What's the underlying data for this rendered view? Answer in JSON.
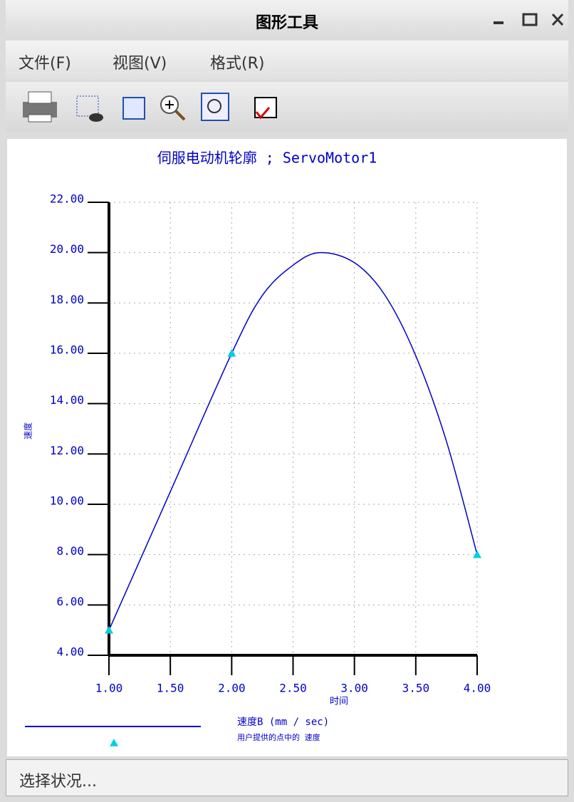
{
  "window": {
    "title": "图形工具",
    "menus": [
      "文件(F)",
      "视图(V)",
      "格式(R)"
    ],
    "status": "选择状况..."
  },
  "chart_data": {
    "type": "line",
    "title": "伺服电动机轮廓 ; ServoMotor1",
    "x_label": "时间",
    "y_label": "速度",
    "xlim": [
      1,
      4
    ],
    "ylim": [
      4,
      22
    ],
    "xticks": [
      {
        "value": 1,
        "label": "1.00"
      },
      {
        "value": 1.5,
        "label": "1.50"
      },
      {
        "value": 2,
        "label": "2.00"
      },
      {
        "value": 2.5,
        "label": "2.50"
      },
      {
        "value": 3,
        "label": "3.00"
      },
      {
        "value": 3.5,
        "label": "3.50"
      },
      {
        "value": 4,
        "label": "4.00"
      }
    ],
    "yticks": [
      {
        "value": 4,
        "label": "4.00"
      },
      {
        "value": 6,
        "label": "6.00"
      },
      {
        "value": 8,
        "label": "8.00"
      },
      {
        "value": 10,
        "label": "10.00"
      },
      {
        "value": 12,
        "label": "12.00"
      },
      {
        "value": 14,
        "label": "14.00"
      },
      {
        "value": 16,
        "label": "16.00"
      },
      {
        "value": 18,
        "label": "18.00"
      },
      {
        "value": 20,
        "label": "20.00"
      },
      {
        "value": 22,
        "label": "22.00"
      }
    ],
    "grid": true,
    "series": [
      {
        "name": "速度B (mm / sec)",
        "color": "#0000c8",
        "x": [
          1,
          1.5,
          2,
          2.25,
          2.5,
          2.72,
          3,
          3.25,
          3.5,
          3.75,
          4
        ],
        "values": [
          5,
          10.5,
          16,
          18.3,
          19.5,
          20,
          19.6,
          18.3,
          15.9,
          12.5,
          8
        ]
      },
      {
        "name": "用户提供的点中的 速度",
        "color": "#00d0e0",
        "marker": "triangle",
        "x": [
          1,
          2,
          4
        ],
        "values": [
          5,
          16,
          8
        ]
      }
    ]
  }
}
